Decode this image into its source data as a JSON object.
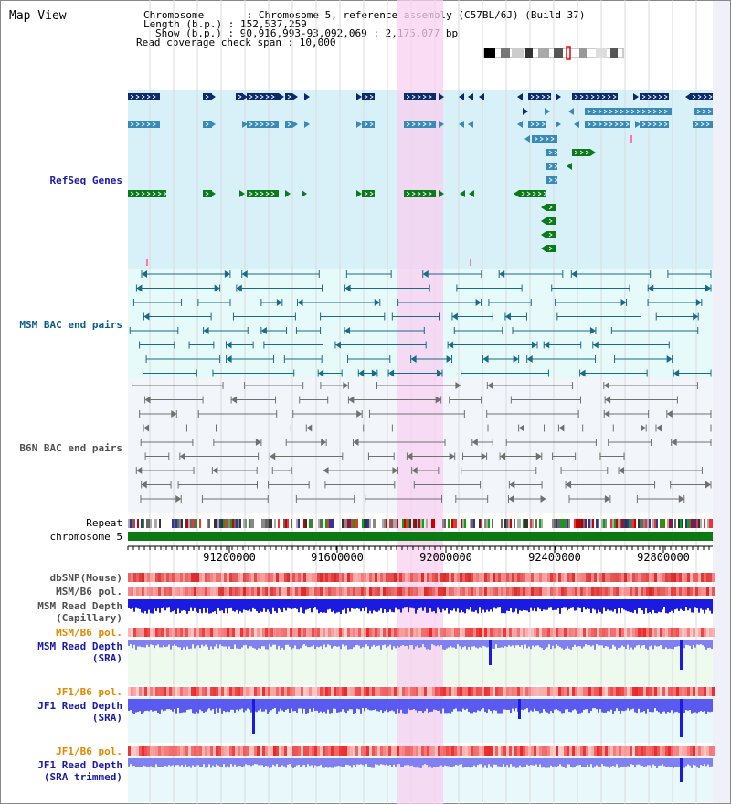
{
  "title": "Map View",
  "header": {
    "chromosome": "Chromosome       : Chromosome 5, reference assembly (C57BL/6J) (Build 37)",
    "length": "Length (b.p.) : 152,537,259",
    "show": "Show (b.p.) : 90,916,993-93,092,069 : 2,175,077 bp",
    "read_coverage": "Read coverage check span : 10,000"
  },
  "tracks": {
    "refseq": "RefSeq Genes",
    "msm_bac": "MSM BAC end pairs",
    "b6n_bac": "B6N BAC end pairs",
    "repeat": "Repeat",
    "chromosome": "chromosome 5",
    "dbsnp": "dbSNP(Mouse)",
    "msm_b6_pol": "MSM/B6 pol.",
    "msm_read_depth_cap_1": "MSM Read Depth",
    "msm_read_depth_cap_2": "(Capillary)",
    "msm_b6_pol_2": "MSM/B6 pol.",
    "msm_read_depth_sra_1": "MSM Read Depth",
    "msm_read_depth_sra_2": "(SRA)",
    "jf1_b6_pol": "JF1/B6 pol.",
    "jf1_read_depth_sra_1": "JF1 Read Depth",
    "jf1_read_depth_sra_2": "(SRA)",
    "jf1_b6_pol_2": "JF1/B6 pol.",
    "jf1_read_depth_trim_1": "JF1 Read Depth",
    "jf1_read_depth_trim_2": "(SRA trimmed)"
  },
  "axis_ticks": [
    "91200000",
    "91600000",
    "92000000",
    "92400000",
    "92800000"
  ],
  "colors": {
    "refseq_bg": "#d8f0f8",
    "bac_bg": "#e6fafa",
    "b6n_bg": "#f2f6fa",
    "highlight": "#f8d0f0",
    "dark_blue": "#0a2a6a",
    "mid_blue": "#3a8ab8",
    "green": "#0a7a1a",
    "teal": "#1a6a8a",
    "grey": "#707070",
    "chromosome_bar": "#0b7a12",
    "label_blue": "#1a1aa8",
    "label_teal": "#0a5a8a",
    "label_orange": "#e08a00",
    "label_grey": "#505050",
    "depth_blue": "#1a1ae0",
    "depth_light": "#8080f0"
  }
}
